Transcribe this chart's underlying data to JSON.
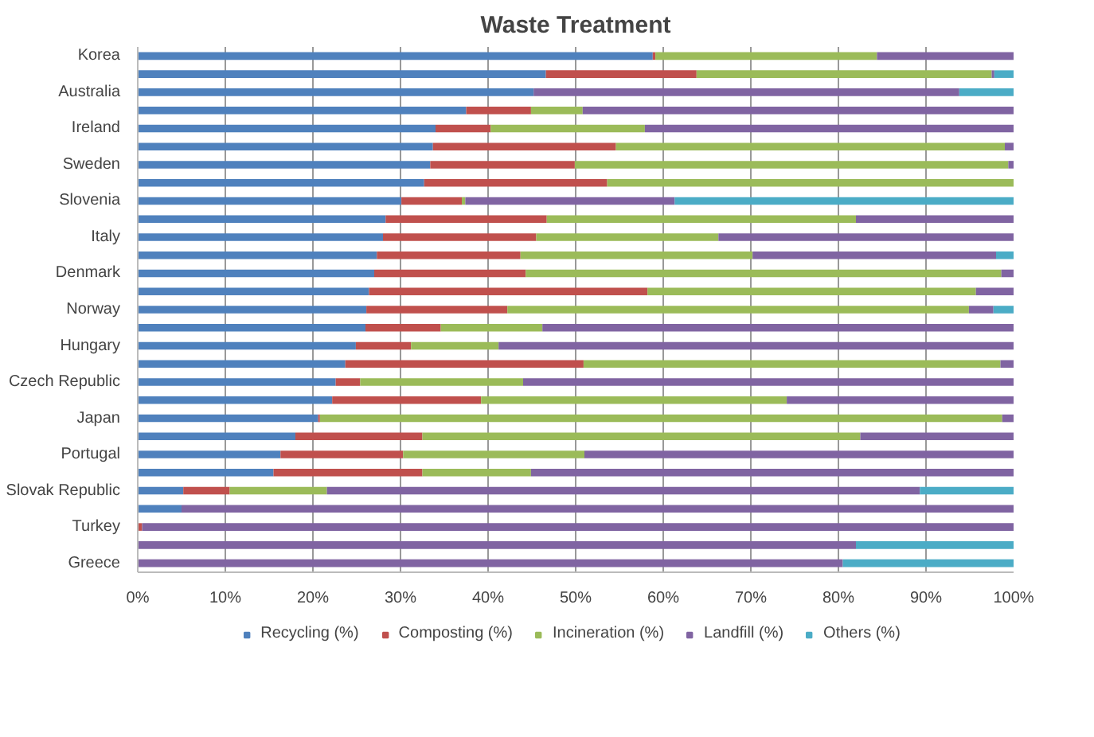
{
  "chart_data": {
    "type": "bar",
    "orientation": "horizontal",
    "stacked": true,
    "title": "Waste Treatment",
    "categories": [
      "Korea",
      null,
      "Australia",
      null,
      "Ireland",
      null,
      "Sweden",
      null,
      "Slovenia",
      null,
      "Italy",
      null,
      "Denmark",
      null,
      "Norway",
      null,
      "Hungary",
      null,
      "Czech Republic",
      null,
      "Japan",
      null,
      "Portugal",
      null,
      "Slovak Republic",
      null,
      "Turkey",
      null,
      "Greece"
    ],
    "series": [
      {
        "name": "Recycling (%)",
        "color": "#4f81bd",
        "values": [
          58.8,
          46.6,
          45.2,
          37.5,
          34.0,
          33.7,
          33.4,
          32.7,
          30.1,
          28.3,
          28.0,
          27.3,
          27.0,
          26.4,
          26.1,
          26.0,
          24.9,
          23.7,
          22.6,
          22.2,
          20.6,
          18.0,
          16.3,
          15.5,
          5.2,
          5.0,
          0,
          0,
          0
        ]
      },
      {
        "name": "Composting (%)",
        "color": "#c0504d",
        "values": [
          0.3,
          17.2,
          0,
          7.4,
          6.3,
          20.9,
          16.5,
          20.9,
          6.9,
          18.4,
          17.5,
          16.4,
          17.3,
          31.8,
          16.1,
          8.6,
          6.3,
          27.2,
          2.8,
          17.0,
          0.2,
          14.5,
          14.0,
          17.0,
          5.3,
          0,
          0.5,
          0,
          0
        ]
      },
      {
        "name": "Incineration (%)",
        "color": "#9bbb59",
        "values": [
          25.3,
          33.7,
          0,
          5.9,
          17.6,
          44.4,
          49.5,
          46.4,
          0.4,
          35.3,
          20.8,
          26.5,
          54.3,
          37.5,
          52.7,
          11.6,
          10.0,
          47.6,
          18.6,
          34.9,
          77.9,
          50.0,
          20.7,
          12.4,
          11.1,
          0,
          0,
          0,
          0
        ]
      },
      {
        "name": "Landfill (%)",
        "color": "#8064a2",
        "values": [
          15.6,
          0.3,
          48.6,
          49.2,
          42.1,
          1.0,
          0.6,
          0,
          23.9,
          18.0,
          33.7,
          27.8,
          1.4,
          4.3,
          2.8,
          53.8,
          58.8,
          1.5,
          56.0,
          25.9,
          1.3,
          17.5,
          49.0,
          55.1,
          67.7,
          95.0,
          99.5,
          82.0,
          80.5
        ]
      },
      {
        "name": "Others (%)",
        "color": "#4bacc6",
        "values": [
          0,
          2.2,
          6.2,
          0,
          0,
          0,
          0,
          0,
          38.7,
          0,
          0,
          2.0,
          0,
          0,
          2.3,
          0,
          0,
          0,
          0,
          0,
          0,
          0,
          0,
          0,
          10.7,
          0,
          0,
          18.0,
          19.5
        ]
      }
    ],
    "xlim": [
      0,
      100
    ],
    "xticks": [
      {
        "value": 0,
        "label": "0%"
      },
      {
        "value": 10,
        "label": "10%"
      },
      {
        "value": 20,
        "label": "20%"
      },
      {
        "value": 30,
        "label": "30%"
      },
      {
        "value": 40,
        "label": "40%"
      },
      {
        "value": 50,
        "label": "50%"
      },
      {
        "value": 60,
        "label": "60%"
      },
      {
        "value": 70,
        "label": "70%"
      },
      {
        "value": 80,
        "label": "80%"
      },
      {
        "value": 90,
        "label": "90%"
      },
      {
        "value": 100,
        "label": "100%"
      }
    ],
    "grid": "x",
    "legend": "bottom"
  }
}
